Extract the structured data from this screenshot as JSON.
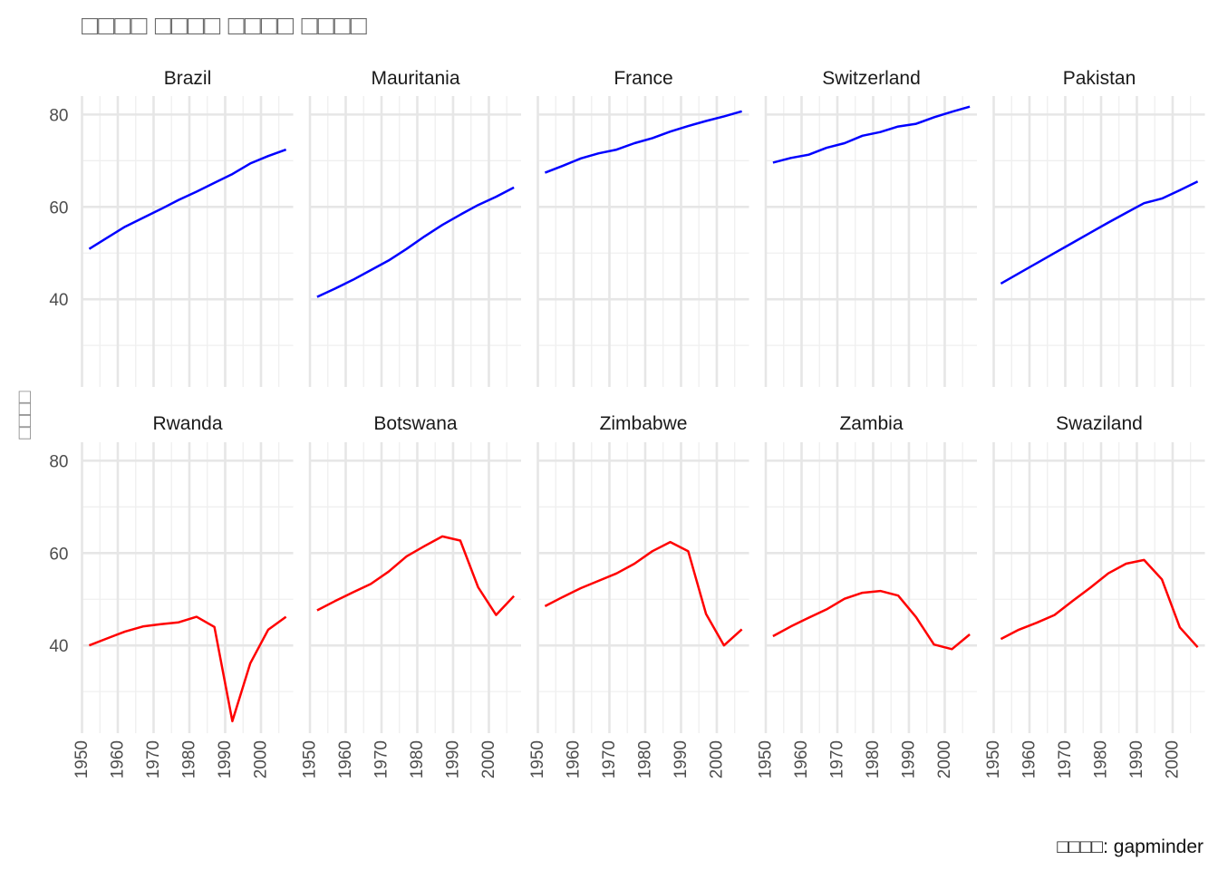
{
  "chart_data": {
    "type": "line",
    "title": "□□□□ □□□□ □□□□ □□□□",
    "ylabel": "□□□□",
    "caption": "□□□□: gapminder",
    "xlim": [
      1950,
      2009
    ],
    "ylim": [
      21,
      84
    ],
    "x_ticks": [
      1950,
      1960,
      1970,
      1980,
      1990,
      2000
    ],
    "y_ticks": [
      40,
      60,
      80
    ],
    "grid": true,
    "facets": [
      {
        "name": "Brazil",
        "color": "#0000ff",
        "x": [
          1952,
          1957,
          1962,
          1967,
          1972,
          1977,
          1982,
          1987,
          1992,
          1997,
          2002,
          2007
        ],
        "y": [
          50.9,
          53.3,
          55.7,
          57.6,
          59.5,
          61.5,
          63.3,
          65.2,
          67.1,
          69.4,
          71.0,
          72.4
        ]
      },
      {
        "name": "Mauritania",
        "color": "#0000ff",
        "x": [
          1952,
          1957,
          1962,
          1967,
          1972,
          1977,
          1982,
          1987,
          1992,
          1997,
          2002,
          2007
        ],
        "y": [
          40.5,
          42.3,
          44.2,
          46.3,
          48.4,
          50.9,
          53.6,
          56.1,
          58.3,
          60.4,
          62.2,
          64.2
        ]
      },
      {
        "name": "France",
        "color": "#0000ff",
        "x": [
          1952,
          1957,
          1962,
          1967,
          1972,
          1977,
          1982,
          1987,
          1992,
          1997,
          2002,
          2007
        ],
        "y": [
          67.4,
          68.9,
          70.5,
          71.6,
          72.4,
          73.8,
          74.9,
          76.3,
          77.5,
          78.6,
          79.6,
          80.7
        ]
      },
      {
        "name": "Switzerland",
        "color": "#0000ff",
        "x": [
          1952,
          1957,
          1962,
          1967,
          1972,
          1977,
          1982,
          1987,
          1992,
          1997,
          2002,
          2007
        ],
        "y": [
          69.6,
          70.6,
          71.3,
          72.8,
          73.8,
          75.4,
          76.2,
          77.4,
          78.0,
          79.4,
          80.6,
          81.7
        ]
      },
      {
        "name": "Pakistan",
        "color": "#0000ff",
        "x": [
          1952,
          1957,
          1962,
          1967,
          1972,
          1977,
          1982,
          1987,
          1992,
          1997,
          2002,
          2007
        ],
        "y": [
          43.4,
          45.6,
          47.8,
          50.0,
          52.2,
          54.4,
          56.6,
          58.7,
          60.8,
          61.8,
          63.6,
          65.5
        ]
      },
      {
        "name": "Rwanda",
        "color": "#ff0000",
        "x": [
          1952,
          1957,
          1962,
          1967,
          1972,
          1977,
          1982,
          1987,
          1992,
          1997,
          2002,
          2007
        ],
        "y": [
          40.0,
          41.5,
          43.0,
          44.1,
          44.6,
          45.0,
          46.2,
          44.0,
          23.6,
          36.1,
          43.4,
          46.2
        ]
      },
      {
        "name": "Botswana",
        "color": "#ff0000",
        "x": [
          1952,
          1957,
          1962,
          1967,
          1972,
          1977,
          1982,
          1987,
          1992,
          1997,
          2002,
          2007
        ],
        "y": [
          47.6,
          49.6,
          51.5,
          53.3,
          56.0,
          59.3,
          61.5,
          63.6,
          62.7,
          52.6,
          46.6,
          50.7
        ]
      },
      {
        "name": "Zimbabwe",
        "color": "#ff0000",
        "x": [
          1952,
          1957,
          1962,
          1967,
          1972,
          1977,
          1982,
          1987,
          1992,
          1997,
          2002,
          2007
        ],
        "y": [
          48.5,
          50.5,
          52.4,
          54.0,
          55.6,
          57.7,
          60.4,
          62.4,
          60.4,
          46.8,
          40.0,
          43.5
        ]
      },
      {
        "name": "Zambia",
        "color": "#ff0000",
        "x": [
          1952,
          1957,
          1962,
          1967,
          1972,
          1977,
          1982,
          1987,
          1992,
          1997,
          2002,
          2007
        ],
        "y": [
          42.0,
          44.1,
          46.0,
          47.8,
          50.1,
          51.4,
          51.8,
          50.8,
          46.1,
          40.2,
          39.2,
          42.4
        ]
      },
      {
        "name": "Swaziland",
        "color": "#ff0000",
        "x": [
          1952,
          1957,
          1962,
          1967,
          1972,
          1977,
          1982,
          1987,
          1992,
          1997,
          2002,
          2007
        ],
        "y": [
          41.4,
          43.4,
          44.9,
          46.6,
          49.6,
          52.5,
          55.6,
          57.7,
          58.5,
          54.3,
          43.9,
          39.6
        ]
      }
    ]
  }
}
